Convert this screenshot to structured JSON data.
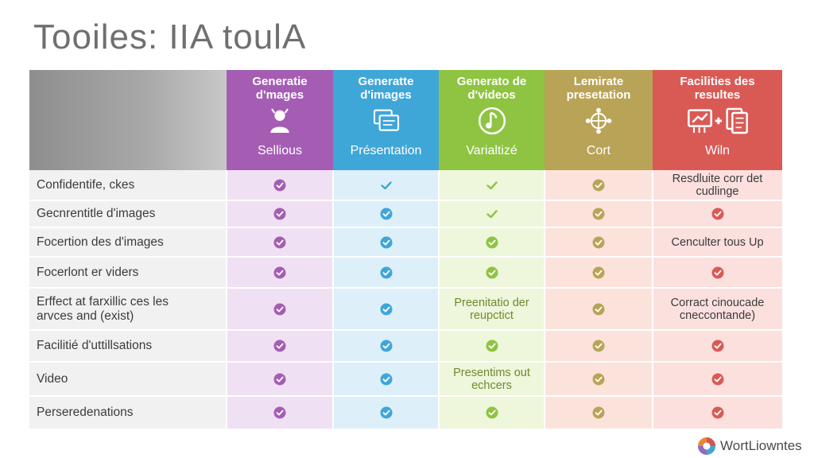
{
  "title": "Tooiles: IIA toulA",
  "colors": {
    "purple": "#a55db4",
    "blue": "#3fa6d8",
    "green": "#8ec441",
    "olive": "#b9a356",
    "red": "#d95a55",
    "purple_bg": "#efe1f3",
    "blue_bg": "#ddeff9",
    "green_bg": "#eef6dc",
    "olive_bg": "#fbe3dc",
    "red_bg": "#fbe0de",
    "label_bg": "#f1f1f1"
  },
  "columns": [
    {
      "title": "Generatie\nd'mages",
      "subtitle": "Sellious",
      "icon": "person-icon",
      "color": "#a55db4"
    },
    {
      "title": "Generatte\nd'images",
      "subtitle": "Présentation",
      "icon": "slides-icon",
      "color": "#3fa6d8"
    },
    {
      "title": "Generato de\nd'videos",
      "subtitle": "Varialtizé",
      "icon": "music-note-icon",
      "color": "#8ec441"
    },
    {
      "title": "Lemirate\npresetation",
      "subtitle": "Cort",
      "icon": "network-icon",
      "color": "#b9a356"
    },
    {
      "title": "Facilities des\nresultes",
      "subtitle": "Wiln",
      "icon": "chart-plus-doc-icon",
      "color": "#d95a55"
    }
  ],
  "rows": [
    {
      "label": "Confidentife, ckes",
      "cells": [
        "check-circle",
        "check-plain",
        "check-plain",
        "check-circle",
        "Resdluite corr det\ncudlinge"
      ]
    },
    {
      "label": "Gecnrentitle d'images",
      "cells": [
        "check-circle",
        "check-circle",
        "check-plain",
        "check-circle",
        "check-circle"
      ]
    },
    {
      "label": "Focertion des d'images",
      "cells": [
        "check-circle",
        "check-circle",
        "check-circle",
        "check-circle",
        "Cenculter tous Up"
      ]
    },
    {
      "label": "Focerlont er viders",
      "cells": [
        "check-circle",
        "check-circle",
        "check-circle",
        "check-circle",
        "check-circle"
      ]
    },
    {
      "label": "Erffect at farxillic ces les\narvces and (exist)",
      "cells": [
        "check-circle",
        "check-circle",
        "Preenitatio der\nreupctict",
        "check-circle",
        "Corract cinoucade\ncneccontande)"
      ]
    },
    {
      "label": "Facilitié d'uttillsations",
      "cells": [
        "check-circle",
        "check-circle",
        "check-circle",
        "check-circle",
        "check-circle"
      ]
    },
    {
      "label": "Video",
      "cells": [
        "check-circle",
        "check-circle",
        "Presentims out\nechcers",
        "check-circle",
        "check-circle"
      ]
    },
    {
      "label": "Perseredenations",
      "cells": [
        "check-circle",
        "check-circle",
        "check-circle",
        "check-circle",
        "check-circle"
      ]
    }
  ],
  "brand": {
    "name": "WortLiowntes",
    "logo": "brand-logo-icon"
  }
}
